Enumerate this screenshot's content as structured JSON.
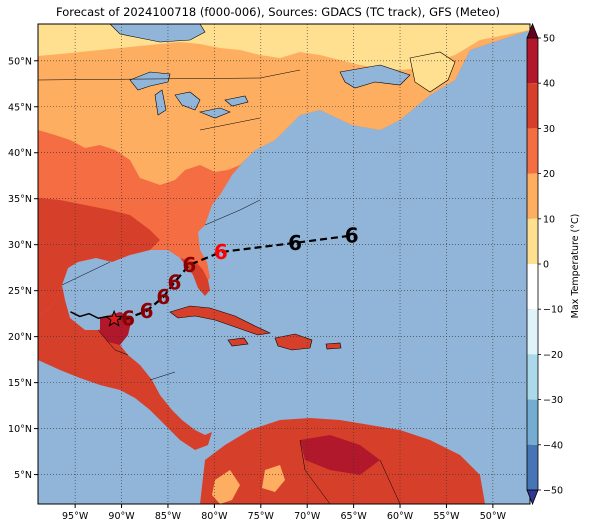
{
  "title": "Forecast of 2024100718 (f000-006), Sources: GDACS (TC track), GFS (Meteo)",
  "map": {
    "lon_range": [
      -99,
      -46
    ],
    "lat_range": [
      1.8,
      54
    ],
    "x_ticks": [
      "95°W",
      "90°W",
      "85°W",
      "80°W",
      "75°W",
      "70°W",
      "65°W",
      "60°W",
      "55°W",
      "50°W"
    ],
    "y_ticks": [
      "50°N",
      "45°N",
      "40°N",
      "35°N",
      "30°N",
      "25°N",
      "20°N",
      "15°N",
      "10°N",
      "5°N"
    ],
    "ocean_color": "#91b4d9",
    "grid": "dotted"
  },
  "colorbar": {
    "label": "Max Temperature (°C)",
    "ticks": [
      "50",
      "40",
      "30",
      "20",
      "10",
      "0",
      "−10",
      "−20",
      "−30",
      "−40",
      "−50"
    ],
    "colors": [
      "#67001f",
      "#b2182b",
      "#d6402b",
      "#f46d43",
      "#fdae61",
      "#fee090",
      "#ffffff",
      "#e0f3f8",
      "#abd9e9",
      "#74add1",
      "#4575b4",
      "#313695"
    ]
  },
  "track": {
    "type": "hurricane",
    "observed": [
      [
        -95.5,
        22.7
      ],
      [
        -94.5,
        22.2
      ],
      [
        -93.5,
        22.5
      ],
      [
        -92.5,
        22.0
      ],
      [
        -91.5,
        22.2
      ],
      [
        -90.8,
        21.9
      ]
    ],
    "current": [
      -90.8,
      21.9
    ],
    "forecast": [
      [
        -90.8,
        21.9
      ],
      [
        -89.3,
        22.0
      ],
      [
        -87.3,
        22.8
      ],
      [
        -85.5,
        24.3
      ],
      [
        -84.3,
        25.9
      ],
      [
        -82.7,
        27.8
      ],
      [
        -79.3,
        29.2
      ],
      [
        -71.3,
        30.2
      ],
      [
        -65.2,
        31.0
      ]
    ],
    "forecast_colors": [
      "#8b0000",
      "#8b0000",
      "#8b0000",
      "#8b0000",
      "#8b0000",
      "#ff0000",
      "#000000",
      "#000000"
    ],
    "symbol": "6"
  }
}
